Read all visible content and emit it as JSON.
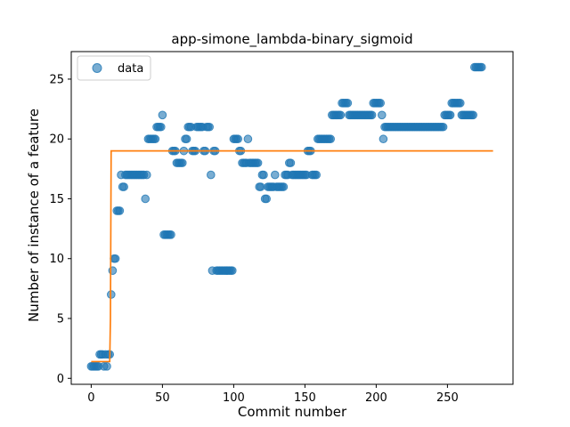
{
  "chart_data": {
    "type": "scatter",
    "title": "app-simone_lambda-binary_sigmoid",
    "xlabel": "Commit number",
    "ylabel": "Number of instance of a feature",
    "xlim": [
      -14,
      296
    ],
    "ylim": [
      -0.5,
      27.3
    ],
    "xticks": [
      0,
      50,
      100,
      150,
      200,
      250
    ],
    "yticks": [
      0,
      5,
      10,
      15,
      20,
      25
    ],
    "grid": false,
    "legend": {
      "position": "upper-left",
      "entries": [
        "data"
      ]
    },
    "colors": {
      "data": "#1f77b4",
      "fit": "#ff7f0e"
    },
    "series": [
      {
        "name": "data",
        "kind": "scatter",
        "points": [
          [
            0,
            1
          ],
          [
            1,
            1
          ],
          [
            2,
            1
          ],
          [
            3,
            1
          ],
          [
            4,
            1
          ],
          [
            5,
            1
          ],
          [
            6,
            2
          ],
          [
            7,
            2
          ],
          [
            8,
            2
          ],
          [
            9,
            1
          ],
          [
            10,
            2
          ],
          [
            11,
            1
          ],
          [
            12,
            2
          ],
          [
            13,
            2
          ],
          [
            14,
            7
          ],
          [
            15,
            9
          ],
          [
            16,
            10
          ],
          [
            17,
            10
          ],
          [
            18,
            14
          ],
          [
            19,
            14
          ],
          [
            20,
            14
          ],
          [
            21,
            17
          ],
          [
            22,
            16
          ],
          [
            23,
            16
          ],
          [
            24,
            17
          ],
          [
            25,
            17
          ],
          [
            26,
            17
          ],
          [
            27,
            17
          ],
          [
            28,
            17
          ],
          [
            29,
            17
          ],
          [
            30,
            17
          ],
          [
            31,
            17
          ],
          [
            32,
            17
          ],
          [
            33,
            17
          ],
          [
            34,
            17
          ],
          [
            35,
            17
          ],
          [
            36,
            17
          ],
          [
            37,
            17
          ],
          [
            38,
            15
          ],
          [
            39,
            17
          ],
          [
            40,
            20
          ],
          [
            41,
            20
          ],
          [
            42,
            20
          ],
          [
            43,
            20
          ],
          [
            44,
            20
          ],
          [
            45,
            20
          ],
          [
            46,
            21
          ],
          [
            47,
            21
          ],
          [
            48,
            21
          ],
          [
            49,
            21
          ],
          [
            50,
            22
          ],
          [
            51,
            12
          ],
          [
            52,
            12
          ],
          [
            53,
            12
          ],
          [
            54,
            12
          ],
          [
            55,
            12
          ],
          [
            56,
            12
          ],
          [
            57,
            19
          ],
          [
            58,
            19
          ],
          [
            59,
            19
          ],
          [
            60,
            18
          ],
          [
            61,
            18
          ],
          [
            62,
            18
          ],
          [
            63,
            18
          ],
          [
            64,
            18
          ],
          [
            65,
            19
          ],
          [
            66,
            20
          ],
          [
            67,
            20
          ],
          [
            68,
            21
          ],
          [
            69,
            21
          ],
          [
            70,
            21
          ],
          [
            71,
            19
          ],
          [
            72,
            19
          ],
          [
            73,
            19
          ],
          [
            74,
            21
          ],
          [
            75,
            21
          ],
          [
            76,
            21
          ],
          [
            77,
            21
          ],
          [
            78,
            21
          ],
          [
            79,
            19
          ],
          [
            80,
            19
          ],
          [
            81,
            21
          ],
          [
            82,
            21
          ],
          [
            83,
            21
          ],
          [
            84,
            17
          ],
          [
            85,
            9
          ],
          [
            86,
            19
          ],
          [
            87,
            19
          ],
          [
            88,
            9
          ],
          [
            89,
            9
          ],
          [
            90,
            9
          ],
          [
            91,
            9
          ],
          [
            92,
            9
          ],
          [
            93,
            9
          ],
          [
            94,
            9
          ],
          [
            95,
            9
          ],
          [
            96,
            9
          ],
          [
            97,
            9
          ],
          [
            98,
            9
          ],
          [
            99,
            9
          ],
          [
            100,
            20
          ],
          [
            101,
            20
          ],
          [
            102,
            20
          ],
          [
            103,
            20
          ],
          [
            104,
            19
          ],
          [
            105,
            19
          ],
          [
            106,
            18
          ],
          [
            107,
            18
          ],
          [
            108,
            18
          ],
          [
            109,
            18
          ],
          [
            110,
            20
          ],
          [
            111,
            18
          ],
          [
            112,
            18
          ],
          [
            113,
            18
          ],
          [
            114,
            18
          ],
          [
            115,
            18
          ],
          [
            116,
            18
          ],
          [
            117,
            18
          ],
          [
            118,
            16
          ],
          [
            119,
            16
          ],
          [
            120,
            17
          ],
          [
            121,
            17
          ],
          [
            122,
            15
          ],
          [
            123,
            15
          ],
          [
            124,
            16
          ],
          [
            125,
            16
          ],
          [
            126,
            16
          ],
          [
            127,
            16
          ],
          [
            128,
            16
          ],
          [
            129,
            17
          ],
          [
            130,
            16
          ],
          [
            131,
            16
          ],
          [
            132,
            16
          ],
          [
            133,
            16
          ],
          [
            134,
            16
          ],
          [
            135,
            16
          ],
          [
            136,
            17
          ],
          [
            137,
            17
          ],
          [
            138,
            17
          ],
          [
            139,
            18
          ],
          [
            140,
            18
          ],
          [
            141,
            17
          ],
          [
            142,
            17
          ],
          [
            143,
            17
          ],
          [
            144,
            17
          ],
          [
            145,
            17
          ],
          [
            146,
            17
          ],
          [
            147,
            17
          ],
          [
            148,
            17
          ],
          [
            149,
            17
          ],
          [
            150,
            17
          ],
          [
            151,
            17
          ],
          [
            152,
            19
          ],
          [
            153,
            19
          ],
          [
            154,
            19
          ],
          [
            155,
            17
          ],
          [
            156,
            17
          ],
          [
            157,
            17
          ],
          [
            158,
            17
          ],
          [
            159,
            20
          ],
          [
            160,
            20
          ],
          [
            161,
            20
          ],
          [
            162,
            20
          ],
          [
            163,
            20
          ],
          [
            164,
            20
          ],
          [
            165,
            20
          ],
          [
            166,
            20
          ],
          [
            167,
            20
          ],
          [
            168,
            20
          ],
          [
            169,
            22
          ],
          [
            170,
            22
          ],
          [
            171,
            22
          ],
          [
            172,
            22
          ],
          [
            173,
            22
          ],
          [
            174,
            22
          ],
          [
            175,
            22
          ],
          [
            176,
            23
          ],
          [
            177,
            23
          ],
          [
            178,
            23
          ],
          [
            179,
            23
          ],
          [
            180,
            23
          ],
          [
            181,
            22
          ],
          [
            182,
            22
          ],
          [
            183,
            22
          ],
          [
            184,
            22
          ],
          [
            185,
            22
          ],
          [
            186,
            22
          ],
          [
            187,
            22
          ],
          [
            188,
            22
          ],
          [
            189,
            22
          ],
          [
            190,
            22
          ],
          [
            191,
            22
          ],
          [
            192,
            22
          ],
          [
            193,
            22
          ],
          [
            194,
            22
          ],
          [
            195,
            22
          ],
          [
            196,
            22
          ],
          [
            197,
            22
          ],
          [
            198,
            23
          ],
          [
            199,
            23
          ],
          [
            200,
            23
          ],
          [
            201,
            23
          ],
          [
            202,
            23
          ],
          [
            203,
            23
          ],
          [
            204,
            22
          ],
          [
            205,
            20
          ],
          [
            206,
            21
          ],
          [
            207,
            21
          ],
          [
            208,
            21
          ],
          [
            209,
            21
          ],
          [
            210,
            21
          ],
          [
            211,
            21
          ],
          [
            212,
            21
          ],
          [
            213,
            21
          ],
          [
            214,
            21
          ],
          [
            215,
            21
          ],
          [
            216,
            21
          ],
          [
            217,
            21
          ],
          [
            218,
            21
          ],
          [
            219,
            21
          ],
          [
            220,
            21
          ],
          [
            221,
            21
          ],
          [
            222,
            21
          ],
          [
            223,
            21
          ],
          [
            224,
            21
          ],
          [
            225,
            21
          ],
          [
            226,
            21
          ],
          [
            227,
            21
          ],
          [
            228,
            21
          ],
          [
            229,
            21
          ],
          [
            230,
            21
          ],
          [
            231,
            21
          ],
          [
            232,
            21
          ],
          [
            233,
            21
          ],
          [
            234,
            21
          ],
          [
            235,
            21
          ],
          [
            236,
            21
          ],
          [
            237,
            21
          ],
          [
            238,
            21
          ],
          [
            239,
            21
          ],
          [
            240,
            21
          ],
          [
            241,
            21
          ],
          [
            242,
            21
          ],
          [
            243,
            21
          ],
          [
            244,
            21
          ],
          [
            245,
            21
          ],
          [
            246,
            21
          ],
          [
            247,
            21
          ],
          [
            248,
            22
          ],
          [
            249,
            22
          ],
          [
            250,
            22
          ],
          [
            251,
            22
          ],
          [
            252,
            22
          ],
          [
            253,
            23
          ],
          [
            254,
            23
          ],
          [
            255,
            23
          ],
          [
            256,
            23
          ],
          [
            257,
            23
          ],
          [
            258,
            23
          ],
          [
            259,
            23
          ],
          [
            260,
            22
          ],
          [
            261,
            22
          ],
          [
            262,
            22
          ],
          [
            263,
            22
          ],
          [
            264,
            22
          ],
          [
            265,
            22
          ],
          [
            266,
            22
          ],
          [
            267,
            22
          ],
          [
            268,
            22
          ],
          [
            269,
            26
          ],
          [
            270,
            26
          ],
          [
            271,
            26
          ],
          [
            272,
            26
          ],
          [
            273,
            26
          ],
          [
            274,
            26
          ]
        ]
      },
      {
        "kind": "line",
        "points": [
          [
            0,
            1.4
          ],
          [
            13,
            1.4
          ],
          [
            13.5,
            5
          ],
          [
            14,
            19
          ],
          [
            282,
            19
          ]
        ]
      }
    ]
  }
}
